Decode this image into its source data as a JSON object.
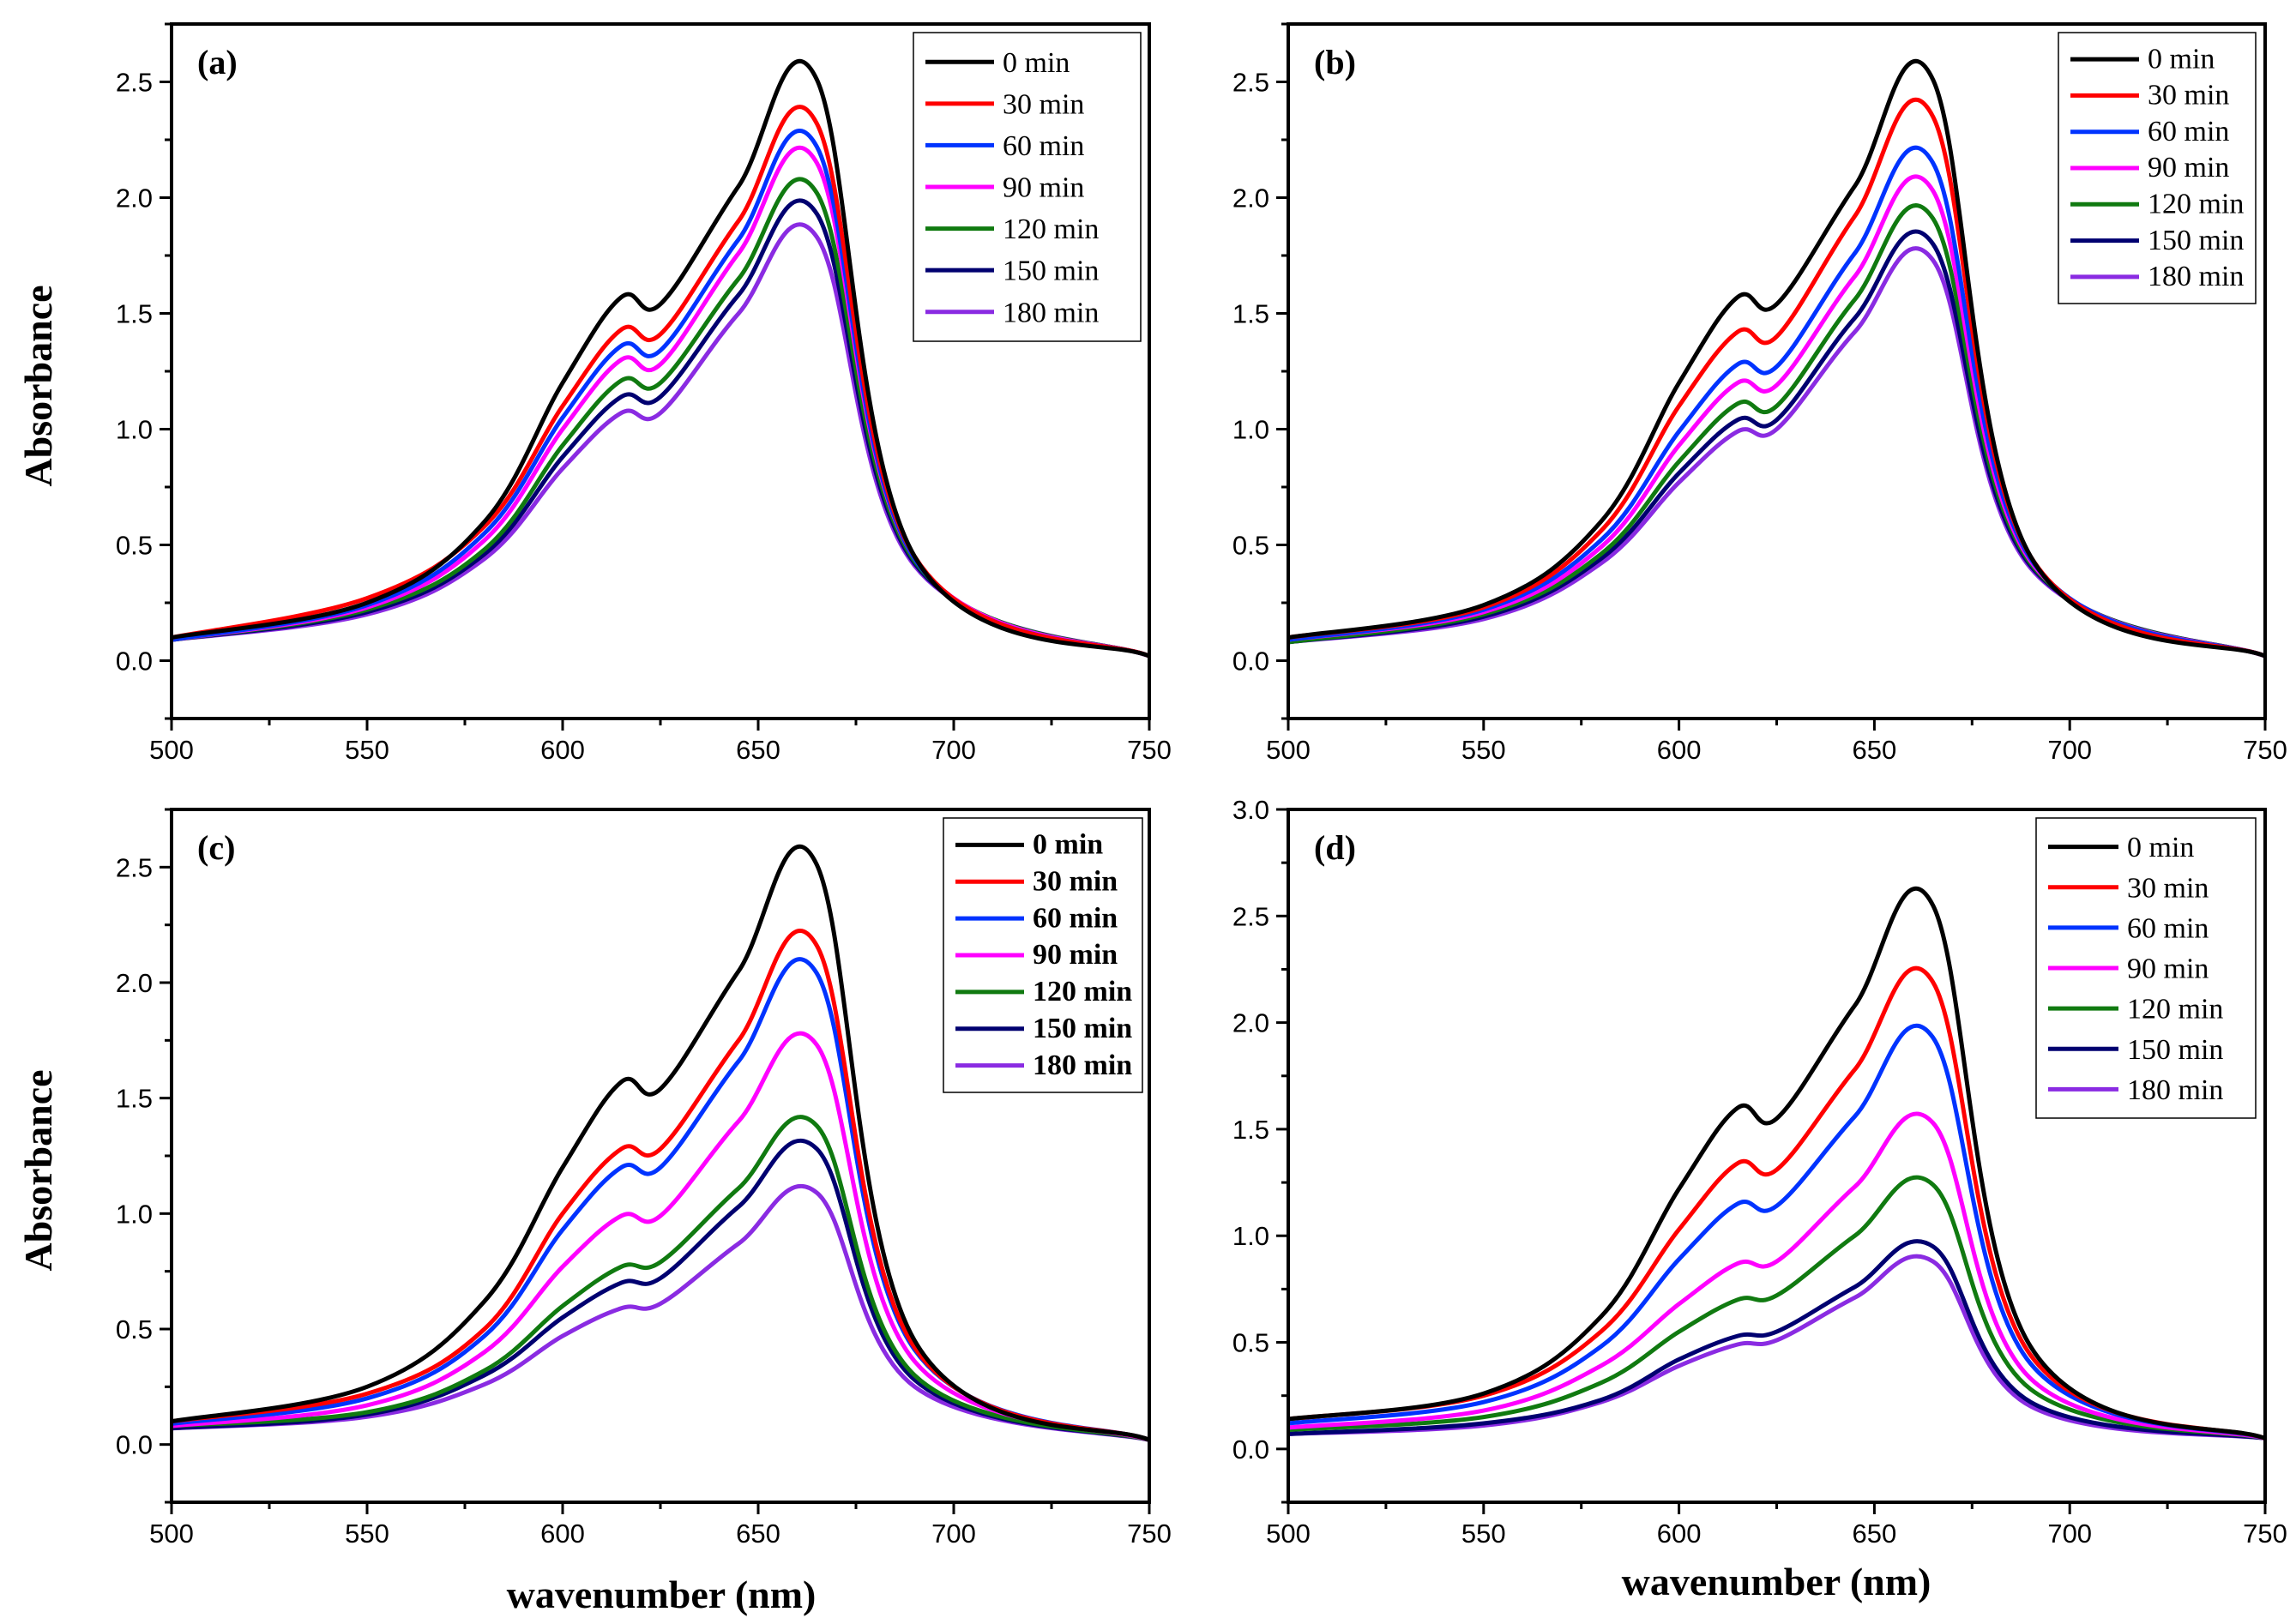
{
  "figure": {
    "y_axis_title": "Absorbance",
    "x_axis_title": "wavenumber  (nm)"
  },
  "series_colors": {
    "0 min": "#000000",
    "30 min": "#ff0000",
    "60 min": "#0033ff",
    "90 min": "#ff00ff",
    "120 min": "#107a10",
    "150 min": "#000070",
    "180 min": "#8a2be2"
  },
  "chart_data": [
    {
      "type": "line",
      "panel_label": "(a)",
      "xlabel": "",
      "ylabel": "Absorbance",
      "xlim": [
        500,
        750
      ],
      "ylim": [
        -0.25,
        2.75
      ],
      "x_ticks": [
        "500",
        "550",
        "600",
        "650",
        "700",
        "750"
      ],
      "y_ticks": [
        "0.0",
        "0.5",
        "1.0",
        "1.5",
        "2.0",
        "2.5"
      ],
      "legend_position": "top-right",
      "legend_bold": false,
      "x": [
        500,
        550,
        580,
        600,
        615,
        625,
        645,
        665,
        690,
        750
      ],
      "series": [
        {
          "name": "0 min",
          "values": [
            0.1,
            0.25,
            0.6,
            1.2,
            1.57,
            1.54,
            2.05,
            2.51,
            0.45,
            0.02
          ]
        },
        {
          "name": "30 min",
          "values": [
            0.1,
            0.27,
            0.58,
            1.1,
            1.43,
            1.41,
            1.9,
            2.32,
            0.45,
            0.02
          ]
        },
        {
          "name": "60 min",
          "values": [
            0.09,
            0.24,
            0.55,
            1.05,
            1.36,
            1.34,
            1.82,
            2.22,
            0.44,
            0.02
          ]
        },
        {
          "name": "90 min",
          "values": [
            0.09,
            0.23,
            0.52,
            1.0,
            1.3,
            1.28,
            1.76,
            2.15,
            0.44,
            0.02
          ]
        },
        {
          "name": "120 min",
          "values": [
            0.09,
            0.22,
            0.48,
            0.93,
            1.21,
            1.2,
            1.65,
            2.02,
            0.43,
            0.02
          ]
        },
        {
          "name": "150 min",
          "values": [
            0.09,
            0.21,
            0.46,
            0.88,
            1.14,
            1.14,
            1.58,
            1.93,
            0.42,
            0.02
          ]
        },
        {
          "name": "180 min",
          "values": [
            0.09,
            0.2,
            0.44,
            0.83,
            1.07,
            1.07,
            1.5,
            1.83,
            0.41,
            0.02
          ]
        }
      ]
    },
    {
      "type": "line",
      "panel_label": "(b)",
      "xlabel": "",
      "ylabel": "",
      "xlim": [
        500,
        750
      ],
      "ylim": [
        -0.25,
        2.75
      ],
      "x_ticks": [
        "500",
        "550",
        "600",
        "650",
        "700",
        "750"
      ],
      "y_ticks": [
        "0.0",
        "0.5",
        "1.0",
        "1.5",
        "2.0",
        "2.5"
      ],
      "legend_position": "top-right",
      "legend_bold": false,
      "x": [
        500,
        550,
        580,
        600,
        615,
        625,
        645,
        665,
        690,
        750
      ],
      "series": [
        {
          "name": "0 min",
          "values": [
            0.1,
            0.24,
            0.6,
            1.2,
            1.57,
            1.54,
            2.05,
            2.51,
            0.45,
            0.02
          ]
        },
        {
          "name": "30 min",
          "values": [
            0.1,
            0.23,
            0.56,
            1.1,
            1.42,
            1.4,
            1.92,
            2.35,
            0.45,
            0.02
          ]
        },
        {
          "name": "60 min",
          "values": [
            0.09,
            0.22,
            0.52,
            0.99,
            1.28,
            1.27,
            1.76,
            2.15,
            0.44,
            0.02
          ]
        },
        {
          "name": "90 min",
          "values": [
            0.09,
            0.21,
            0.49,
            0.93,
            1.2,
            1.19,
            1.66,
            2.03,
            0.43,
            0.02
          ]
        },
        {
          "name": "120 min",
          "values": [
            0.08,
            0.2,
            0.46,
            0.86,
            1.11,
            1.1,
            1.56,
            1.91,
            0.42,
            0.02
          ]
        },
        {
          "name": "150 min",
          "values": [
            0.08,
            0.19,
            0.44,
            0.81,
            1.04,
            1.04,
            1.48,
            1.8,
            0.41,
            0.02
          ]
        },
        {
          "name": "180 min",
          "values": [
            0.08,
            0.18,
            0.42,
            0.77,
            0.99,
            1.0,
            1.42,
            1.73,
            0.4,
            0.02
          ]
        }
      ]
    },
    {
      "type": "line",
      "panel_label": "(c)",
      "xlabel": "wavenumber  (nm)",
      "ylabel": "Absorbance",
      "xlim": [
        500,
        750
      ],
      "ylim": [
        -0.25,
        2.75
      ],
      "x_ticks": [
        "500",
        "550",
        "600",
        "650",
        "700",
        "750"
      ],
      "y_ticks": [
        "0.0",
        "0.5",
        "1.0",
        "1.5",
        "2.0",
        "2.5"
      ],
      "legend_position": "top-right",
      "legend_bold": true,
      "x": [
        500,
        550,
        580,
        600,
        615,
        625,
        645,
        665,
        690,
        750
      ],
      "series": [
        {
          "name": "0 min",
          "values": [
            0.1,
            0.25,
            0.62,
            1.2,
            1.57,
            1.54,
            2.05,
            2.51,
            0.45,
            0.02
          ]
        },
        {
          "name": "30 min",
          "values": [
            0.1,
            0.22,
            0.5,
            1.0,
            1.28,
            1.28,
            1.75,
            2.16,
            0.42,
            0.02
          ]
        },
        {
          "name": "60 min",
          "values": [
            0.09,
            0.2,
            0.47,
            0.93,
            1.2,
            1.2,
            1.66,
            2.04,
            0.41,
            0.02
          ]
        },
        {
          "name": "90 min",
          "values": [
            0.08,
            0.17,
            0.4,
            0.77,
            0.99,
            0.99,
            1.4,
            1.73,
            0.36,
            0.02
          ]
        },
        {
          "name": "120 min",
          "values": [
            0.08,
            0.14,
            0.32,
            0.6,
            0.77,
            0.79,
            1.11,
            1.38,
            0.3,
            0.02
          ]
        },
        {
          "name": "150 min",
          "values": [
            0.07,
            0.13,
            0.3,
            0.55,
            0.7,
            0.72,
            1.03,
            1.28,
            0.28,
            0.02
          ]
        },
        {
          "name": "180 min",
          "values": [
            0.07,
            0.12,
            0.26,
            0.47,
            0.59,
            0.61,
            0.87,
            1.09,
            0.25,
            0.02
          ]
        }
      ]
    },
    {
      "type": "line",
      "panel_label": "(d)",
      "xlabel": "wavenumber  (nm)",
      "ylabel": "",
      "xlim": [
        500,
        750
      ],
      "ylim": [
        -0.25,
        3.0
      ],
      "x_ticks": [
        "500",
        "550",
        "600",
        "650",
        "700",
        "750"
      ],
      "y_ticks": [
        "0.0",
        "0.5",
        "1.0",
        "1.5",
        "2.0",
        "2.5",
        "3.0"
      ],
      "legend_position": "top-right",
      "legend_bold": false,
      "x": [
        500,
        550,
        580,
        600,
        615,
        625,
        645,
        665,
        690,
        750
      ],
      "series": [
        {
          "name": "0 min",
          "values": [
            0.14,
            0.26,
            0.62,
            1.22,
            1.6,
            1.55,
            2.08,
            2.55,
            0.48,
            0.05
          ]
        },
        {
          "name": "30 min",
          "values": [
            0.14,
            0.25,
            0.55,
            1.03,
            1.34,
            1.31,
            1.78,
            2.19,
            0.44,
            0.05
          ]
        },
        {
          "name": "60 min",
          "values": [
            0.12,
            0.22,
            0.48,
            0.89,
            1.15,
            1.14,
            1.56,
            1.93,
            0.4,
            0.05
          ]
        },
        {
          "name": "90 min",
          "values": [
            0.1,
            0.18,
            0.39,
            0.68,
            0.87,
            0.88,
            1.23,
            1.53,
            0.33,
            0.05
          ]
        },
        {
          "name": "120 min",
          "values": [
            0.09,
            0.15,
            0.31,
            0.55,
            0.7,
            0.72,
            1.0,
            1.24,
            0.28,
            0.05
          ]
        },
        {
          "name": "150 min",
          "values": [
            0.07,
            0.12,
            0.23,
            0.42,
            0.53,
            0.55,
            0.76,
            0.95,
            0.22,
            0.05
          ]
        },
        {
          "name": "180 min",
          "values": [
            0.07,
            0.11,
            0.22,
            0.39,
            0.49,
            0.51,
            0.71,
            0.88,
            0.2,
            0.05
          ]
        }
      ]
    }
  ]
}
